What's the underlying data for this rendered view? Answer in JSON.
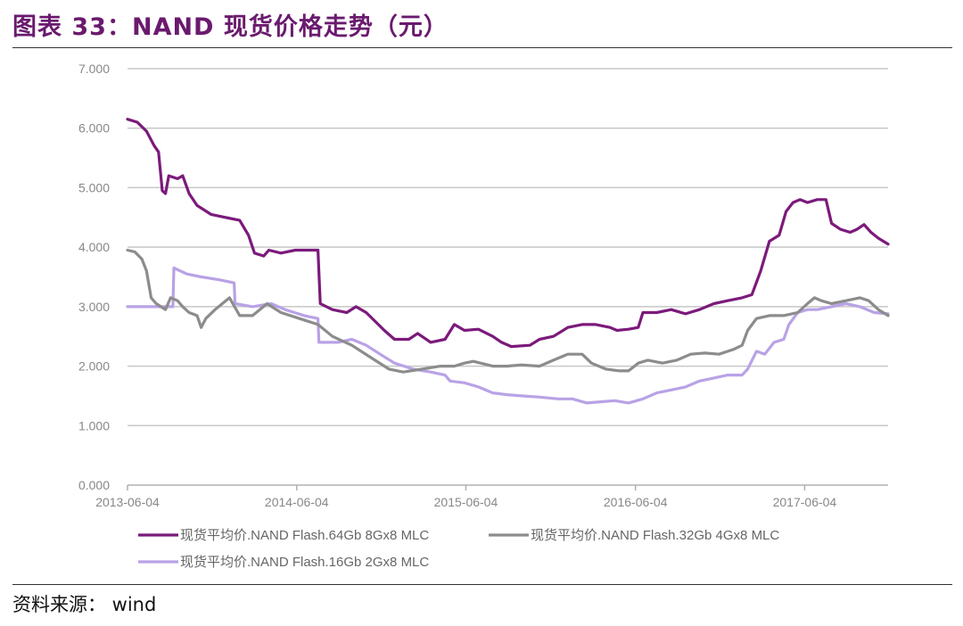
{
  "figure": {
    "title": "图表 33：NAND 现货价格走势（元）",
    "source": "资料来源： wind"
  },
  "chart_data": {
    "type": "line",
    "title": "图表 33：NAND 现货价格走势（元）",
    "xlabel": "",
    "ylabel": "",
    "ylim": [
      0,
      7
    ],
    "xlim": [
      "2013-06-04",
      "2017-12-01"
    ],
    "y_ticks": [
      "0.000",
      "1.000",
      "2.000",
      "3.000",
      "4.000",
      "5.000",
      "6.000",
      "7.000"
    ],
    "x_ticks": [
      "2013-06-04",
      "2014-06-04",
      "2015-06-04",
      "2016-06-04",
      "2017-06-04"
    ],
    "grid": true,
    "legend_position": "bottom",
    "series": [
      {
        "name": "现货平均价.NAND Flash.64Gb 8Gx8 MLC",
        "color": "#7b1a7b",
        "points": [
          [
            "2013-06-04",
            6.15
          ],
          [
            "2013-06-25",
            6.1
          ],
          [
            "2013-07-15",
            5.95
          ],
          [
            "2013-08-01",
            5.7
          ],
          [
            "2013-08-10",
            5.6
          ],
          [
            "2013-08-18",
            4.95
          ],
          [
            "2013-08-25",
            4.9
          ],
          [
            "2013-09-01",
            5.2
          ],
          [
            "2013-09-20",
            5.15
          ],
          [
            "2013-10-01",
            5.2
          ],
          [
            "2013-10-15",
            4.9
          ],
          [
            "2013-11-01",
            4.7
          ],
          [
            "2013-12-01",
            4.55
          ],
          [
            "2014-01-01",
            4.5
          ],
          [
            "2014-02-01",
            4.45
          ],
          [
            "2014-02-20",
            4.2
          ],
          [
            "2014-03-05",
            3.9
          ],
          [
            "2014-03-25",
            3.85
          ],
          [
            "2014-04-05",
            3.95
          ],
          [
            "2014-05-01",
            3.9
          ],
          [
            "2014-06-01",
            3.95
          ],
          [
            "2014-07-20",
            3.95
          ],
          [
            "2014-07-25",
            3.05
          ],
          [
            "2014-08-20",
            2.95
          ],
          [
            "2014-09-20",
            2.9
          ],
          [
            "2014-10-10",
            3.0
          ],
          [
            "2014-11-01",
            2.9
          ],
          [
            "2014-12-10",
            2.6
          ],
          [
            "2015-01-01",
            2.45
          ],
          [
            "2015-02-01",
            2.45
          ],
          [
            "2015-02-20",
            2.55
          ],
          [
            "2015-03-20",
            2.4
          ],
          [
            "2015-04-20",
            2.45
          ],
          [
            "2015-05-10",
            2.7
          ],
          [
            "2015-06-01",
            2.6
          ],
          [
            "2015-07-01",
            2.62
          ],
          [
            "2015-08-01",
            2.5
          ],
          [
            "2015-08-20",
            2.4
          ],
          [
            "2015-09-10",
            2.33
          ],
          [
            "2015-10-20",
            2.35
          ],
          [
            "2015-11-10",
            2.45
          ],
          [
            "2015-12-10",
            2.5
          ],
          [
            "2016-01-10",
            2.65
          ],
          [
            "2016-02-10",
            2.7
          ],
          [
            "2016-03-10",
            2.7
          ],
          [
            "2016-04-10",
            2.65
          ],
          [
            "2016-04-25",
            2.6
          ],
          [
            "2016-05-20",
            2.62
          ],
          [
            "2016-06-10",
            2.65
          ],
          [
            "2016-06-20",
            2.9
          ],
          [
            "2016-07-20",
            2.9
          ],
          [
            "2016-08-20",
            2.95
          ],
          [
            "2016-09-20",
            2.88
          ],
          [
            "2016-10-20",
            2.95
          ],
          [
            "2016-11-20",
            3.05
          ],
          [
            "2016-12-20",
            3.1
          ],
          [
            "2017-01-20",
            3.15
          ],
          [
            "2017-02-10",
            3.2
          ],
          [
            "2017-03-01",
            3.6
          ],
          [
            "2017-03-20",
            4.1
          ],
          [
            "2017-04-10",
            4.2
          ],
          [
            "2017-04-25",
            4.6
          ],
          [
            "2017-05-10",
            4.75
          ],
          [
            "2017-05-25",
            4.8
          ],
          [
            "2017-06-10",
            4.75
          ],
          [
            "2017-07-01",
            4.8
          ],
          [
            "2017-07-20",
            4.8
          ],
          [
            "2017-08-01",
            4.4
          ],
          [
            "2017-08-20",
            4.3
          ],
          [
            "2017-09-10",
            4.25
          ],
          [
            "2017-09-25",
            4.3
          ],
          [
            "2017-10-10",
            4.38
          ],
          [
            "2017-10-25",
            4.25
          ],
          [
            "2017-11-10",
            4.15
          ],
          [
            "2017-12-01",
            4.05
          ]
        ]
      },
      {
        "name": "现货平均价.NAND Flash.32Gb 4Gx8 MLC",
        "color": "#8c8c8c",
        "points": [
          [
            "2013-06-04",
            3.95
          ],
          [
            "2013-06-20",
            3.92
          ],
          [
            "2013-07-05",
            3.8
          ],
          [
            "2013-07-15",
            3.6
          ],
          [
            "2013-07-25",
            3.15
          ],
          [
            "2013-08-05",
            3.05
          ],
          [
            "2013-08-15",
            3.0
          ],
          [
            "2013-08-25",
            2.95
          ],
          [
            "2013-09-05",
            3.15
          ],
          [
            "2013-09-20",
            3.1
          ],
          [
            "2013-10-01",
            3.0
          ],
          [
            "2013-10-15",
            2.9
          ],
          [
            "2013-11-01",
            2.85
          ],
          [
            "2013-11-10",
            2.65
          ],
          [
            "2013-11-20",
            2.8
          ],
          [
            "2013-12-10",
            2.95
          ],
          [
            "2014-01-10",
            3.15
          ],
          [
            "2014-02-01",
            2.85
          ],
          [
            "2014-03-01",
            2.85
          ],
          [
            "2014-04-01",
            3.05
          ],
          [
            "2014-05-01",
            2.9
          ],
          [
            "2014-06-10",
            2.8
          ],
          [
            "2014-07-20",
            2.7
          ],
          [
            "2014-08-20",
            2.5
          ],
          [
            "2014-10-01",
            2.35
          ],
          [
            "2014-11-10",
            2.15
          ],
          [
            "2014-12-20",
            1.95
          ],
          [
            "2015-01-20",
            1.9
          ],
          [
            "2015-03-01",
            1.95
          ],
          [
            "2015-04-10",
            2.0
          ],
          [
            "2015-05-10",
            2.0
          ],
          [
            "2015-06-01",
            2.05
          ],
          [
            "2015-06-20",
            2.08
          ],
          [
            "2015-08-01",
            2.0
          ],
          [
            "2015-09-01",
            2.0
          ],
          [
            "2015-10-01",
            2.02
          ],
          [
            "2015-11-10",
            2.0
          ],
          [
            "2015-12-10",
            2.1
          ],
          [
            "2016-01-10",
            2.2
          ],
          [
            "2016-02-10",
            2.2
          ],
          [
            "2016-03-01",
            2.05
          ],
          [
            "2016-04-01",
            1.95
          ],
          [
            "2016-05-01",
            1.92
          ],
          [
            "2016-05-20",
            1.92
          ],
          [
            "2016-06-10",
            2.05
          ],
          [
            "2016-07-01",
            2.1
          ],
          [
            "2016-08-01",
            2.05
          ],
          [
            "2016-09-01",
            2.1
          ],
          [
            "2016-10-01",
            2.2
          ],
          [
            "2016-11-01",
            2.22
          ],
          [
            "2016-12-01",
            2.2
          ],
          [
            "2017-01-01",
            2.28
          ],
          [
            "2017-01-20",
            2.35
          ],
          [
            "2017-02-01",
            2.6
          ],
          [
            "2017-02-20",
            2.8
          ],
          [
            "2017-03-20",
            2.85
          ],
          [
            "2017-04-20",
            2.85
          ],
          [
            "2017-05-20",
            2.9
          ],
          [
            "2017-06-10",
            3.05
          ],
          [
            "2017-06-25",
            3.15
          ],
          [
            "2017-07-10",
            3.1
          ],
          [
            "2017-08-01",
            3.05
          ],
          [
            "2017-09-01",
            3.1
          ],
          [
            "2017-10-01",
            3.15
          ],
          [
            "2017-10-20",
            3.1
          ],
          [
            "2017-11-10",
            2.95
          ],
          [
            "2017-12-01",
            2.85
          ]
        ]
      },
      {
        "name": "现货平均价.NAND Flash.16Gb 2Gx8 MLC",
        "color": "#b8a2e6",
        "points": [
          [
            "2013-06-04",
            3.0
          ],
          [
            "2013-09-10",
            3.0
          ],
          [
            "2013-09-12",
            3.65
          ],
          [
            "2013-10-10",
            3.55
          ],
          [
            "2013-11-10",
            3.5
          ],
          [
            "2013-12-20",
            3.45
          ],
          [
            "2014-01-20",
            3.4
          ],
          [
            "2014-01-22",
            3.05
          ],
          [
            "2014-03-01",
            3.0
          ],
          [
            "2014-04-10",
            3.05
          ],
          [
            "2014-05-10",
            2.95
          ],
          [
            "2014-06-20",
            2.85
          ],
          [
            "2014-07-20",
            2.8
          ],
          [
            "2014-07-22",
            2.4
          ],
          [
            "2014-09-01",
            2.4
          ],
          [
            "2014-10-01",
            2.45
          ],
          [
            "2014-11-01",
            2.35
          ],
          [
            "2014-12-01",
            2.2
          ],
          [
            "2015-01-01",
            2.05
          ],
          [
            "2015-02-10",
            1.95
          ],
          [
            "2015-03-20",
            1.9
          ],
          [
            "2015-04-20",
            1.85
          ],
          [
            "2015-05-01",
            1.75
          ],
          [
            "2015-06-01",
            1.72
          ],
          [
            "2015-07-01",
            1.65
          ],
          [
            "2015-08-01",
            1.55
          ],
          [
            "2015-09-01",
            1.52
          ],
          [
            "2015-10-01",
            1.5
          ],
          [
            "2015-11-10",
            1.48
          ],
          [
            "2015-12-20",
            1.45
          ],
          [
            "2016-01-20",
            1.45
          ],
          [
            "2016-02-20",
            1.38
          ],
          [
            "2016-03-20",
            1.4
          ],
          [
            "2016-04-20",
            1.42
          ],
          [
            "2016-05-20",
            1.38
          ],
          [
            "2016-06-20",
            1.45
          ],
          [
            "2016-07-20",
            1.55
          ],
          [
            "2016-08-20",
            1.6
          ],
          [
            "2016-09-20",
            1.65
          ],
          [
            "2016-10-20",
            1.75
          ],
          [
            "2016-11-20",
            1.8
          ],
          [
            "2016-12-20",
            1.85
          ],
          [
            "2017-01-20",
            1.85
          ],
          [
            "2017-02-01",
            1.95
          ],
          [
            "2017-02-20",
            2.25
          ],
          [
            "2017-03-10",
            2.2
          ],
          [
            "2017-03-30",
            2.4
          ],
          [
            "2017-04-20",
            2.45
          ],
          [
            "2017-05-01",
            2.7
          ],
          [
            "2017-05-20",
            2.9
          ],
          [
            "2017-06-10",
            2.95
          ],
          [
            "2017-07-01",
            2.95
          ],
          [
            "2017-08-01",
            3.0
          ],
          [
            "2017-09-01",
            3.05
          ],
          [
            "2017-10-01",
            3.0
          ],
          [
            "2017-11-01",
            2.9
          ],
          [
            "2017-12-01",
            2.88
          ]
        ]
      }
    ]
  }
}
